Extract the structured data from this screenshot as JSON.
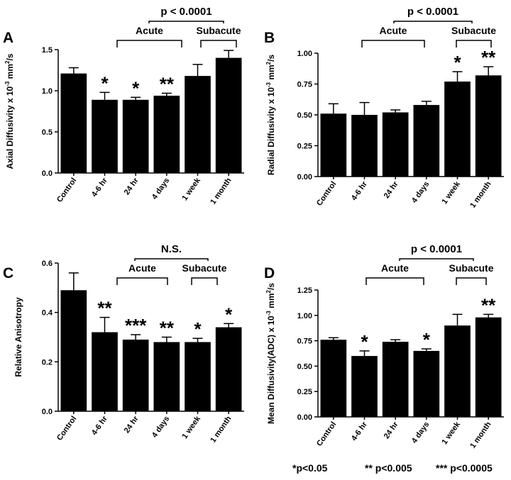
{
  "chart_data": [
    {
      "type": "bar",
      "panel_label": "A",
      "categories": [
        "Control",
        "4-6 hr",
        "24 hr",
        "4 days",
        "1 week",
        "1 month"
      ],
      "values": [
        1.21,
        0.89,
        0.89,
        0.94,
        1.18,
        1.4
      ],
      "errors": [
        0.07,
        0.09,
        0.03,
        0.03,
        0.14,
        0.09
      ],
      "significance": [
        "",
        "*",
        "*",
        "**",
        "",
        ""
      ],
      "ylabel_parts": [
        "Axial Diffusivity x 10",
        "-3",
        " mm",
        "2",
        "/s"
      ],
      "ylim": [
        0,
        1.5
      ],
      "yticks": [
        "0.0",
        "0.5",
        "1.0",
        "1.5"
      ],
      "groups": {
        "acute": "Acute",
        "subacute": "Subacute",
        "comparison": "p < 0.0001"
      }
    },
    {
      "type": "bar",
      "panel_label": "B",
      "categories": [
        "Control",
        "4-6 hr",
        "24 hr",
        "4 days",
        "1 week",
        "1 month"
      ],
      "values": [
        0.51,
        0.5,
        0.52,
        0.58,
        0.77,
        0.82
      ],
      "errors": [
        0.08,
        0.1,
        0.02,
        0.03,
        0.08,
        0.07
      ],
      "significance": [
        "",
        "",
        "",
        "",
        "*",
        "**"
      ],
      "ylabel_parts": [
        "Radial Diffusivity x 10",
        "-3",
        " mm",
        "2",
        "/s"
      ],
      "ylim": [
        0,
        1.0
      ],
      "yticks": [
        "0.00",
        "0.25",
        "0.50",
        "0.75",
        "1.00"
      ],
      "groups": {
        "acute": "Acute",
        "subacute": "Subacute",
        "comparison": "p < 0.0001"
      }
    },
    {
      "type": "bar",
      "panel_label": "C",
      "categories": [
        "Control",
        "4-6 hr",
        "24 hr",
        "4 days",
        "1 week",
        "1 month"
      ],
      "values": [
        0.49,
        0.32,
        0.29,
        0.28,
        0.28,
        0.34
      ],
      "errors": [
        0.07,
        0.06,
        0.02,
        0.02,
        0.015,
        0.015
      ],
      "significance": [
        "",
        "**",
        "***",
        "**",
        "*",
        "*"
      ],
      "ylabel_parts": [
        "Relative Anisotropy"
      ],
      "ylim": [
        0,
        0.6
      ],
      "yticks": [
        "0.0",
        "0.2",
        "0.4",
        "0.6"
      ],
      "groups": {
        "acute": "Acute",
        "subacute": "Subacute",
        "comparison": "N.S."
      }
    },
    {
      "type": "bar",
      "panel_label": "D",
      "categories": [
        "Control",
        "4-6 hr",
        "24 hr",
        "4 days",
        "1 week",
        "1 month"
      ],
      "values": [
        0.76,
        0.6,
        0.74,
        0.65,
        0.9,
        0.98
      ],
      "errors": [
        0.02,
        0.05,
        0.02,
        0.02,
        0.11,
        0.03
      ],
      "significance": [
        "",
        "*",
        "",
        "*",
        "",
        "**"
      ],
      "ylabel_parts": [
        "Mean  Diffusivity(ADC) x 10",
        "-3",
        " mm",
        "2",
        "/s"
      ],
      "ylim": [
        0,
        1.25
      ],
      "yticks": [
        "0.00",
        "0.25",
        "0.50",
        "0.75",
        "1.00",
        "1.25"
      ],
      "groups": {
        "acute": "Acute",
        "subacute": "Subacute",
        "comparison": "p < 0.0001"
      }
    }
  ],
  "footer": {
    "p1": "*p<0.05",
    "p2": "** p<0.005",
    "p3": "*** p<0.0005"
  }
}
